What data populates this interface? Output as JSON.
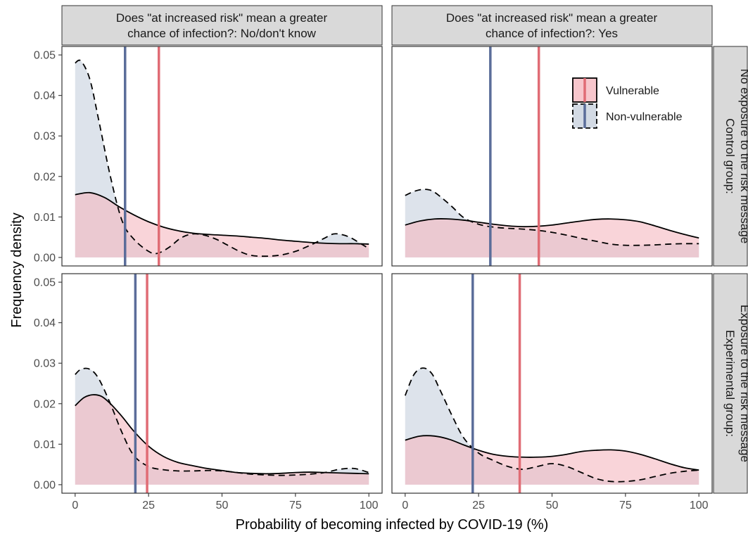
{
  "chart_data": {
    "type": "area",
    "xlabel": "Probability of becoming infected by COVID-19 (%)",
    "ylabel": "Frequency density",
    "xlim": [
      0,
      100
    ],
    "ylim": [
      0,
      0.05
    ],
    "x_ticks": [
      "0",
      "25",
      "50",
      "75",
      "100"
    ],
    "y_ticks": [
      "0.00",
      "0.01",
      "0.02",
      "0.03",
      "0.04",
      "0.05"
    ],
    "grid": false,
    "column_strips": [
      [
        "Does \"at increased risk\" mean a greater",
        "chance of infection?: No/don't know"
      ],
      [
        "Does \"at increased risk\" mean a greater",
        "chance of infection?: Yes"
      ]
    ],
    "row_strips": [
      [
        "Control group:",
        "No exposure to the risk message"
      ],
      [
        "Experimental group:",
        "Exposure to the risk message"
      ]
    ],
    "legend": {
      "position": "top-right (row 1, column 2 panel)",
      "items": [
        {
          "name": "Vulnerable",
          "fill": "#f7c6cc",
          "line": "solid",
          "mean_color": "#e06c75"
        },
        {
          "name": "Non-vulnerable",
          "fill": "#d3dae4",
          "line": "dashed",
          "mean_color": "#5b6d9a"
        }
      ]
    },
    "colors": {
      "vulnerable_fill": "#f5b8c0",
      "nonvulnerable_fill": "#c7d0dd",
      "vulnerable_mean": "#e06c75",
      "nonvulnerable_mean": "#5b6d9a",
      "strip_bg": "#d9d9d9"
    },
    "panels": [
      {
        "row": 0,
        "col": 0,
        "mean_vulnerable": 28.5,
        "mean_nonvulnerable": 17,
        "vulnerable": {
          "x": [
            0,
            5,
            10,
            15,
            20,
            25,
            30,
            35,
            40,
            45,
            50,
            55,
            60,
            65,
            70,
            75,
            80,
            85,
            90,
            95,
            100
          ],
          "y": [
            0.0155,
            0.016,
            0.0148,
            0.0125,
            0.0105,
            0.0088,
            0.0075,
            0.0066,
            0.006,
            0.0057,
            0.0055,
            0.0053,
            0.005,
            0.0047,
            0.0043,
            0.004,
            0.0037,
            0.0035,
            0.0034,
            0.0034,
            0.0033
          ]
        },
        "nonvulnerable": {
          "x": [
            0,
            2,
            5,
            8,
            12,
            16,
            20,
            25,
            28,
            32,
            36,
            40,
            44,
            48,
            52,
            56,
            60,
            65,
            70,
            75,
            80,
            85,
            88,
            91,
            94,
            97,
            100
          ],
          "y": [
            0.048,
            0.0485,
            0.044,
            0.034,
            0.02,
            0.009,
            0.0045,
            0.0015,
            0.001,
            0.0025,
            0.0048,
            0.0058,
            0.0055,
            0.0045,
            0.003,
            0.0015,
            0.0005,
            0.0003,
            0.0006,
            0.0015,
            0.003,
            0.0048,
            0.0058,
            0.0056,
            0.0048,
            0.0035,
            0.0022
          ]
        }
      },
      {
        "row": 0,
        "col": 1,
        "mean_vulnerable": 45.5,
        "mean_nonvulnerable": 29,
        "vulnerable": {
          "x": [
            0,
            5,
            10,
            15,
            20,
            25,
            30,
            35,
            40,
            45,
            50,
            55,
            60,
            65,
            70,
            75,
            80,
            85,
            90,
            95,
            100
          ],
          "y": [
            0.008,
            0.009,
            0.0095,
            0.0095,
            0.0092,
            0.0087,
            0.0082,
            0.0078,
            0.0076,
            0.0077,
            0.008,
            0.0085,
            0.009,
            0.0094,
            0.0095,
            0.0093,
            0.0088,
            0.0078,
            0.0067,
            0.0057,
            0.0048
          ]
        },
        "nonvulnerable": {
          "x": [
            0,
            3,
            6,
            9,
            12,
            16,
            20,
            25,
            30,
            35,
            40,
            45,
            50,
            55,
            60,
            65,
            70,
            75,
            80,
            85,
            90,
            95,
            100
          ],
          "y": [
            0.0153,
            0.0163,
            0.0168,
            0.0165,
            0.015,
            0.0125,
            0.0098,
            0.0082,
            0.0075,
            0.0072,
            0.007,
            0.0067,
            0.0062,
            0.0055,
            0.0047,
            0.004,
            0.0033,
            0.003,
            0.003,
            0.0031,
            0.0033,
            0.0034,
            0.0034
          ]
        }
      },
      {
        "row": 1,
        "col": 0,
        "mean_vulnerable": 24.5,
        "mean_nonvulnerable": 20.5,
        "vulnerable": {
          "x": [
            0,
            3,
            6,
            9,
            12,
            16,
            20,
            25,
            30,
            35,
            40,
            45,
            50,
            55,
            60,
            65,
            70,
            75,
            80,
            85,
            90,
            95,
            100
          ],
          "y": [
            0.0195,
            0.0215,
            0.0222,
            0.0218,
            0.02,
            0.0168,
            0.0132,
            0.0095,
            0.007,
            0.0055,
            0.0047,
            0.004,
            0.0035,
            0.003,
            0.0028,
            0.0027,
            0.0028,
            0.003,
            0.0031,
            0.003,
            0.0029,
            0.0028,
            0.0027
          ]
        },
        "nonvulnerable": {
          "x": [
            0,
            2,
            5,
            8,
            12,
            16,
            20,
            25,
            30,
            35,
            40,
            45,
            50,
            55,
            60,
            65,
            70,
            75,
            80,
            85,
            90,
            95,
            100
          ],
          "y": [
            0.0272,
            0.0285,
            0.0285,
            0.0262,
            0.02,
            0.0128,
            0.0072,
            0.0045,
            0.0037,
            0.0034,
            0.0034,
            0.0035,
            0.0034,
            0.003,
            0.0026,
            0.0024,
            0.0023,
            0.0024,
            0.0026,
            0.003,
            0.0038,
            0.004,
            0.003
          ]
        }
      },
      {
        "row": 1,
        "col": 1,
        "mean_vulnerable": 39,
        "mean_nonvulnerable": 23,
        "vulnerable": {
          "x": [
            0,
            5,
            10,
            15,
            20,
            25,
            30,
            35,
            40,
            45,
            50,
            55,
            60,
            65,
            70,
            75,
            80,
            85,
            90,
            95,
            100
          ],
          "y": [
            0.011,
            0.012,
            0.012,
            0.0112,
            0.0098,
            0.0085,
            0.0075,
            0.007,
            0.0068,
            0.0068,
            0.007,
            0.0075,
            0.0082,
            0.0085,
            0.0086,
            0.0083,
            0.0075,
            0.0064,
            0.0052,
            0.0042,
            0.0036
          ]
        },
        "nonvulnerable": {
          "x": [
            0,
            3,
            6,
            9,
            12,
            16,
            20,
            25,
            30,
            35,
            40,
            45,
            50,
            55,
            60,
            65,
            70,
            75,
            80,
            85,
            90,
            95,
            100
          ],
          "y": [
            0.022,
            0.0272,
            0.0288,
            0.0275,
            0.0232,
            0.017,
            0.0115,
            0.0078,
            0.006,
            0.0045,
            0.0038,
            0.0045,
            0.0052,
            0.0045,
            0.003,
            0.0015,
            0.0008,
            0.0008,
            0.0012,
            0.002,
            0.0028,
            0.0033,
            0.0036
          ]
        }
      }
    ]
  }
}
